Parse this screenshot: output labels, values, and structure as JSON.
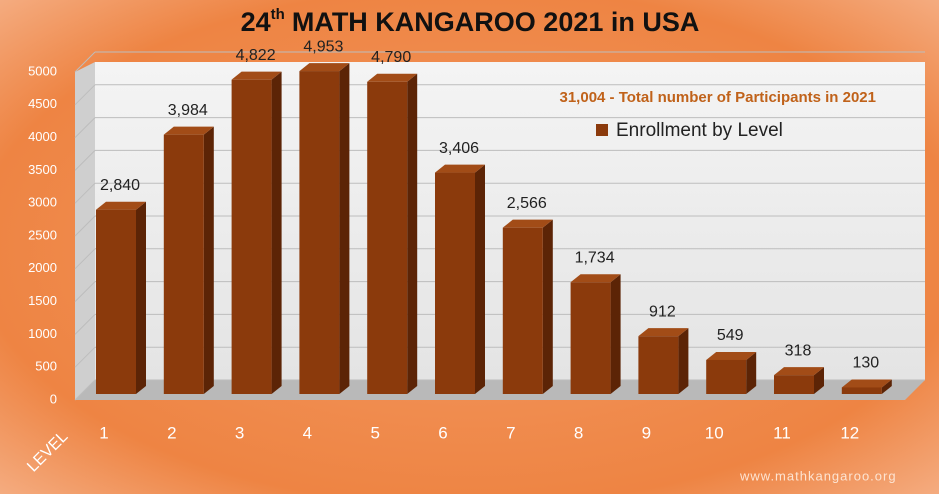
{
  "chart_data": {
    "type": "bar",
    "title": {
      "number": "24",
      "suffix": "th",
      "text": "MATH KANGAROO 2021 in USA"
    },
    "annotation": "31,004 - Total number of Participants in 2021",
    "x_label": "LEVEL",
    "watermark": "www.mathkangaroo.org",
    "categories": [
      "1",
      "2",
      "3",
      "4",
      "5",
      "6",
      "7",
      "8",
      "9",
      "10",
      "11",
      "12"
    ],
    "series": [
      {
        "name": "Enrollment by Level",
        "color": "#8b3a0c",
        "values": [
          2840,
          3984,
          4822,
          4953,
          4790,
          3406,
          2566,
          1734,
          912,
          549,
          318,
          130
        ],
        "value_labels": [
          "2,840",
          "3,984",
          "4,822",
          "4,953",
          "4,790",
          "3,406",
          "2,566",
          "1,734",
          "912",
          "549",
          "318",
          "130"
        ]
      }
    ],
    "ylim": [
      0,
      5000
    ],
    "yticks": [
      0,
      500,
      1000,
      1500,
      2000,
      2500,
      3000,
      3500,
      4000,
      4500,
      5000
    ],
    "grid": true
  }
}
